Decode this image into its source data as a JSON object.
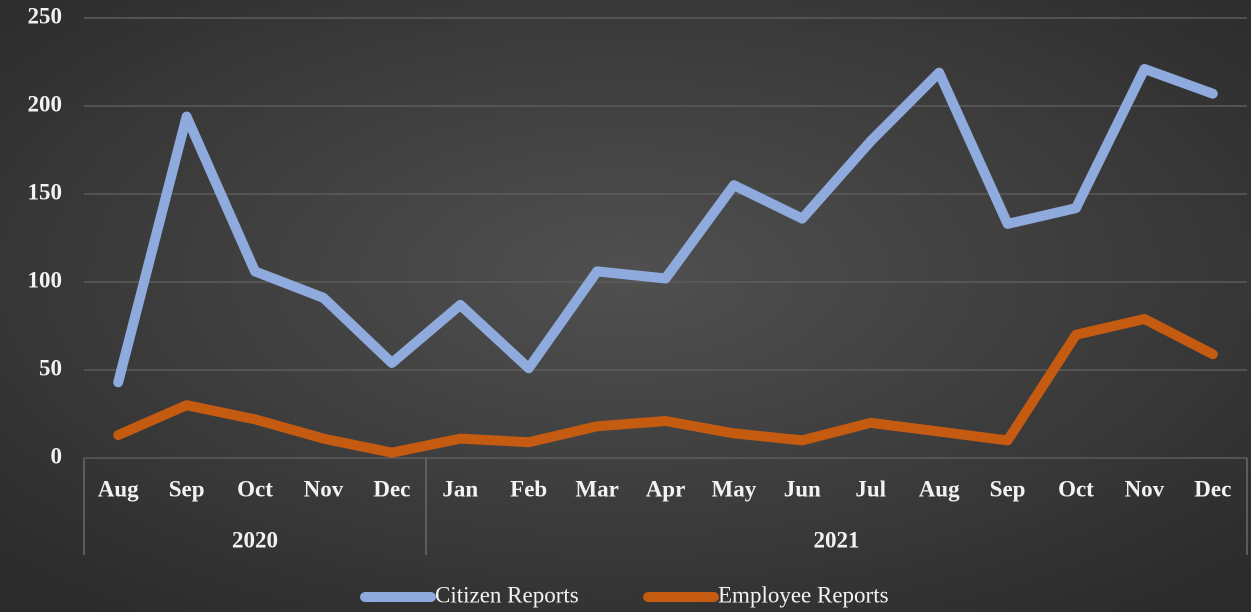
{
  "chart_data": {
    "type": "line",
    "categories": [
      "Aug",
      "Sep",
      "Oct",
      "Nov",
      "Dec",
      "Jan",
      "Feb",
      "Mar",
      "Apr",
      "May",
      "Jun",
      "Jul",
      "Aug",
      "Sep",
      "Oct",
      "Nov",
      "Dec"
    ],
    "groups": [
      {
        "label": "2020",
        "count": 5
      },
      {
        "label": "2021",
        "count": 12
      }
    ],
    "series": [
      {
        "name": "Citizen Reports",
        "color": "#8faadc",
        "values": [
          43,
          194,
          106,
          91,
          54,
          87,
          51,
          106,
          102,
          155,
          136,
          180,
          219,
          133,
          142,
          221,
          207
        ]
      },
      {
        "name": "Employee Reports",
        "color": "#c55a11",
        "values": [
          13,
          30,
          22,
          11,
          3,
          11,
          9,
          18,
          21,
          14,
          10,
          20,
          15,
          10,
          70,
          79,
          59
        ]
      }
    ],
    "ylim": [
      0,
      250
    ],
    "yticks": [
      0,
      50,
      100,
      150,
      200,
      250
    ],
    "grid": true,
    "legend": "bottom"
  }
}
